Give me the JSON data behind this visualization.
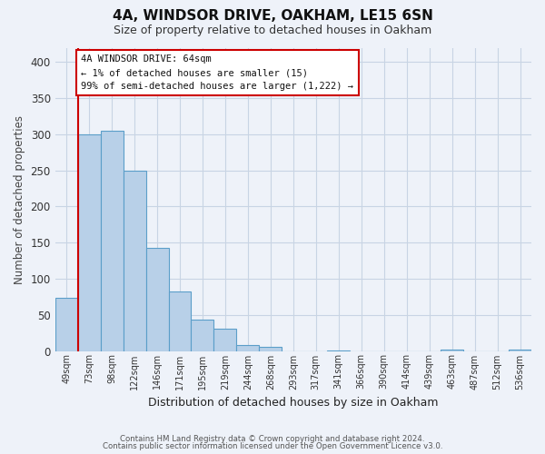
{
  "title": "4A, WINDSOR DRIVE, OAKHAM, LE15 6SN",
  "subtitle": "Size of property relative to detached houses in Oakham",
  "xlabel": "Distribution of detached houses by size in Oakham",
  "ylabel": "Number of detached properties",
  "bin_labels": [
    "49sqm",
    "73sqm",
    "98sqm",
    "122sqm",
    "146sqm",
    "171sqm",
    "195sqm",
    "219sqm",
    "244sqm",
    "268sqm",
    "293sqm",
    "317sqm",
    "341sqm",
    "366sqm",
    "390sqm",
    "414sqm",
    "439sqm",
    "463sqm",
    "487sqm",
    "512sqm",
    "536sqm"
  ],
  "bar_heights": [
    73,
    300,
    305,
    249,
    143,
    83,
    44,
    31,
    8,
    6,
    0,
    0,
    1,
    0,
    0,
    0,
    0,
    2,
    0,
    0,
    2
  ],
  "bar_color": "#b8d0e8",
  "bar_edge_color": "#5b9ec9",
  "ylim": [
    0,
    420
  ],
  "yticks": [
    0,
    50,
    100,
    150,
    200,
    250,
    300,
    350,
    400
  ],
  "annotation_line1": "4A WINDSOR DRIVE: 64sqm",
  "annotation_line2": "← 1% of detached houses are smaller (15)",
  "annotation_line3": "99% of semi-detached houses are larger (1,222) →",
  "footer_line1": "Contains HM Land Registry data © Crown copyright and database right 2024.",
  "footer_line2": "Contains public sector information licensed under the Open Government Licence v3.0.",
  "background_color": "#eef2f9",
  "grid_color": "#c8d4e4",
  "red_line_color": "#cc0000",
  "annotation_box_color": "#ffffff",
  "annotation_box_edge": "#cc0000"
}
